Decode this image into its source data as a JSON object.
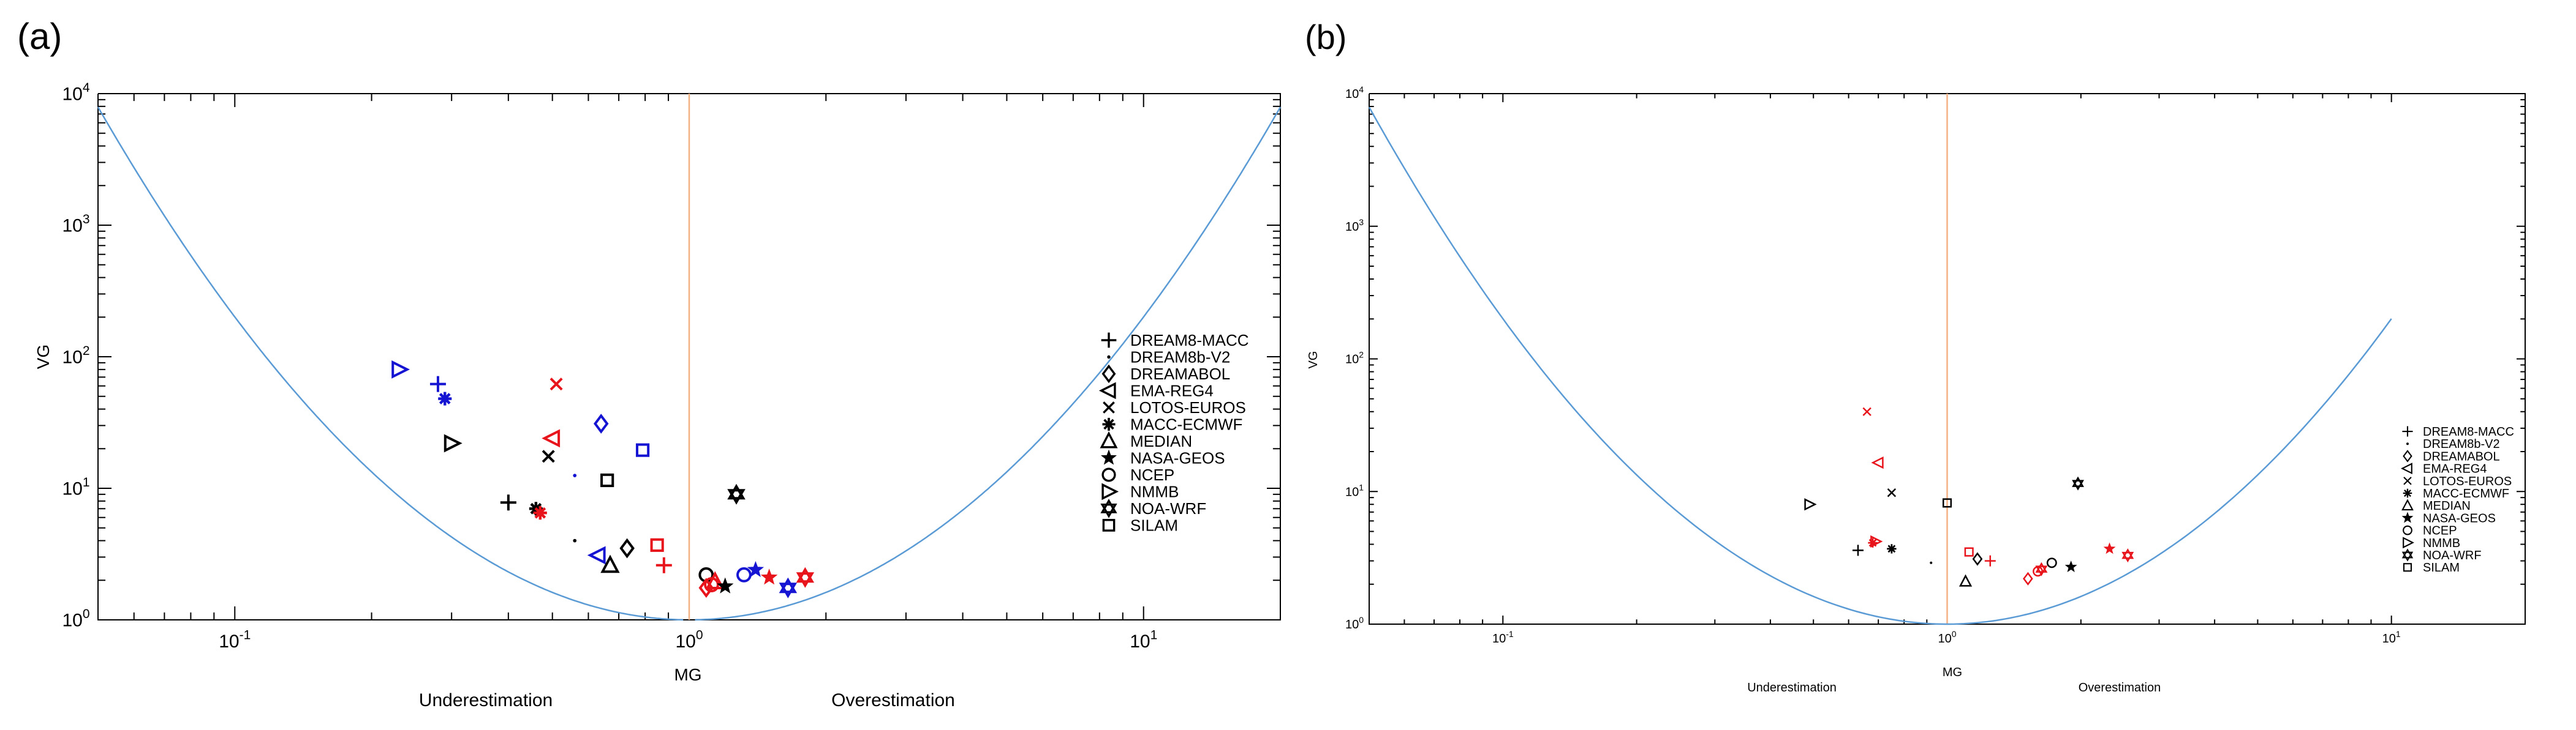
{
  "colors": {
    "black": "#000000",
    "red": "#e8141b",
    "blue": "#1414d2",
    "curve": "#5b9bd5",
    "refline": "#f4b183"
  },
  "marker_legend": [
    {
      "name": "DREAM8-MACC",
      "symbol": "plus"
    },
    {
      "name": "DREAM8b-V2",
      "symbol": "dot"
    },
    {
      "name": "DREAMABOL",
      "symbol": "diamond"
    },
    {
      "name": "EMA-REG4",
      "symbol": "tri-left"
    },
    {
      "name": "LOTOS-EUROS",
      "symbol": "cross"
    },
    {
      "name": "MACC-ECMWF",
      "symbol": "asterisk"
    },
    {
      "name": "MEDIAN",
      "symbol": "tri-up"
    },
    {
      "name": "NASA-GEOS",
      "symbol": "star"
    },
    {
      "name": "NCEP",
      "symbol": "circle"
    },
    {
      "name": "NMMB",
      "symbol": "tri-right"
    },
    {
      "name": "NOA-WRF",
      "symbol": "hexagram"
    },
    {
      "name": "SILAM",
      "symbol": "square"
    }
  ],
  "chart_data": [
    {
      "type": "scatter",
      "panel_label": "(a)",
      "xlabel": "MG",
      "ylabel": "VG",
      "xscale": "log",
      "yscale": "log",
      "xlim": [
        0.05,
        20
      ],
      "ylim": [
        1,
        10000
      ],
      "x_ticks": [
        {
          "value": 0.1,
          "base": "10",
          "exp": "-1"
        },
        {
          "value": 1,
          "base": "10",
          "exp": "0"
        },
        {
          "value": 10,
          "base": "10",
          "exp": "1"
        }
      ],
      "y_ticks": [
        {
          "value": 1,
          "base": "10",
          "exp": "0"
        },
        {
          "value": 10,
          "base": "10",
          "exp": "1"
        },
        {
          "value": 100,
          "base": "10",
          "exp": "2"
        },
        {
          "value": 1000,
          "base": "10",
          "exp": "3"
        },
        {
          "value": 10000,
          "base": "10",
          "exp": "4"
        }
      ],
      "annotations": [
        "Underestimation",
        "Overestimation"
      ],
      "legend_position": "right",
      "curve_segments": [
        {
          "x_from": 0.05,
          "x_to": 0.97
        },
        {
          "x_from": 1.03,
          "x_to": 20
        }
      ],
      "reference_line_x": 1,
      "points": [
        {
          "model": "NMMB",
          "color": "blue",
          "x": 0.23,
          "y": 80
        },
        {
          "model": "DREAM8-MACC",
          "color": "blue",
          "x": 0.28,
          "y": 62
        },
        {
          "model": "MACC-ECMWF",
          "color": "blue",
          "x": 0.29,
          "y": 48
        },
        {
          "model": "NMMB",
          "color": "black",
          "x": 0.3,
          "y": 22
        },
        {
          "model": "DREAM8-MACC",
          "color": "black",
          "x": 0.4,
          "y": 7.8
        },
        {
          "model": "MACC-ECMWF",
          "color": "black",
          "x": 0.46,
          "y": 7.0
        },
        {
          "model": "MACC-ECMWF",
          "color": "red",
          "x": 0.47,
          "y": 6.5
        },
        {
          "model": "LOTOS-EUROS",
          "color": "red",
          "x": 0.51,
          "y": 62
        },
        {
          "model": "EMA-REG4",
          "color": "red",
          "x": 0.5,
          "y": 24
        },
        {
          "model": "LOTOS-EUROS",
          "color": "black",
          "x": 0.49,
          "y": 17.5
        },
        {
          "model": "DREAM8b-V2",
          "color": "blue",
          "x": 0.56,
          "y": 12.5
        },
        {
          "model": "DREAM8b-V2",
          "color": "black",
          "x": 0.56,
          "y": 4.0
        },
        {
          "model": "DREAMABOL",
          "color": "blue",
          "x": 0.64,
          "y": 31
        },
        {
          "model": "EMA-REG4",
          "color": "blue",
          "x": 0.63,
          "y": 3.1
        },
        {
          "model": "MEDIAN",
          "color": "black",
          "x": 0.67,
          "y": 2.6
        },
        {
          "model": "DREAMABOL",
          "color": "black",
          "x": 0.73,
          "y": 3.5
        },
        {
          "model": "SILAM",
          "color": "black",
          "x": 0.66,
          "y": 11.5
        },
        {
          "model": "SILAM",
          "color": "blue",
          "x": 0.79,
          "y": 19.5
        },
        {
          "model": "SILAM",
          "color": "red",
          "x": 0.85,
          "y": 3.7
        },
        {
          "model": "DREAM8-MACC",
          "color": "red",
          "x": 0.88,
          "y": 2.6
        },
        {
          "model": "NCEP",
          "color": "black",
          "x": 1.09,
          "y": 2.2
        },
        {
          "model": "DREAMABOL",
          "color": "red",
          "x": 1.09,
          "y": 1.75
        },
        {
          "model": "NCEP",
          "color": "red",
          "x": 1.12,
          "y": 1.85
        },
        {
          "model": "MEDIAN",
          "color": "red",
          "x": 1.14,
          "y": 1.95
        },
        {
          "model": "NASA-GEOS",
          "color": "black",
          "x": 1.2,
          "y": 1.8
        },
        {
          "model": "NOA-WRF",
          "color": "black",
          "x": 1.27,
          "y": 9.0
        },
        {
          "model": "NCEP",
          "color": "blue",
          "x": 1.32,
          "y": 2.2
        },
        {
          "model": "NASA-GEOS",
          "color": "blue",
          "x": 1.4,
          "y": 2.4
        },
        {
          "model": "NASA-GEOS",
          "color": "red",
          "x": 1.5,
          "y": 2.1
        },
        {
          "model": "NOA-WRF",
          "color": "blue",
          "x": 1.65,
          "y": 1.75
        },
        {
          "model": "NOA-WRF",
          "color": "red",
          "x": 1.8,
          "y": 2.1
        }
      ]
    },
    {
      "type": "scatter",
      "panel_label": "(b)",
      "xlabel": "MG",
      "ylabel": "VG",
      "xscale": "log",
      "yscale": "log",
      "xlim": [
        0.05,
        20
      ],
      "ylim": [
        1,
        10000
      ],
      "x_ticks": [
        {
          "value": 0.1,
          "base": "10",
          "exp": "-1"
        },
        {
          "value": 1,
          "base": "10",
          "exp": "0"
        },
        {
          "value": 10,
          "base": "10",
          "exp": "1"
        }
      ],
      "y_ticks": [
        {
          "value": 1,
          "base": "10",
          "exp": "0"
        },
        {
          "value": 10,
          "base": "10",
          "exp": "1"
        },
        {
          "value": 100,
          "base": "10",
          "exp": "2"
        },
        {
          "value": 1000,
          "base": "10",
          "exp": "3"
        },
        {
          "value": 10000,
          "base": "10",
          "exp": "4"
        }
      ],
      "annotations": [
        "Underestimation",
        "Overestimation"
      ],
      "legend_position": "right",
      "curve_segments": [
        {
          "x_from": 0.05,
          "x_to": 10
        }
      ],
      "reference_line_x": 1,
      "points": [
        {
          "model": "NMMB",
          "color": "black",
          "x": 0.49,
          "y": 8.0
        },
        {
          "model": "DREAM8-MACC",
          "color": "black",
          "x": 0.63,
          "y": 3.6
        },
        {
          "model": "LOTOS-EUROS",
          "color": "red",
          "x": 0.66,
          "y": 40
        },
        {
          "model": "EMA-REG4",
          "color": "red",
          "x": 0.7,
          "y": 16.5
        },
        {
          "model": "NMMB",
          "color": "red",
          "x": 0.69,
          "y": 4.2
        },
        {
          "model": "MACC-ECMWF",
          "color": "red",
          "x": 0.68,
          "y": 4.1
        },
        {
          "model": "MACC-ECMWF",
          "color": "black",
          "x": 0.75,
          "y": 3.7
        },
        {
          "model": "LOTOS-EUROS",
          "color": "black",
          "x": 0.75,
          "y": 9.8
        },
        {
          "model": "DREAM8b-V2",
          "color": "black",
          "x": 0.92,
          "y": 2.9
        },
        {
          "model": "SILAM",
          "color": "black",
          "x": 1.0,
          "y": 8.2
        },
        {
          "model": "MEDIAN",
          "color": "black",
          "x": 1.1,
          "y": 2.1
        },
        {
          "model": "SILAM",
          "color": "red",
          "x": 1.12,
          "y": 3.5
        },
        {
          "model": "DREAMABOL",
          "color": "black",
          "x": 1.17,
          "y": 3.1
        },
        {
          "model": "DREAM8-MACC",
          "color": "red",
          "x": 1.25,
          "y": 3.0
        },
        {
          "model": "DREAMABOL",
          "color": "red",
          "x": 1.52,
          "y": 2.2
        },
        {
          "model": "NCEP",
          "color": "red",
          "x": 1.6,
          "y": 2.5
        },
        {
          "model": "NOA-WRF",
          "color": "red",
          "x": 1.63,
          "y": 2.6
        },
        {
          "model": "NCEP",
          "color": "black",
          "x": 1.72,
          "y": 2.9
        },
        {
          "model": "NASA-GEOS",
          "color": "black",
          "x": 1.9,
          "y": 2.7
        },
        {
          "model": "NOA-WRF",
          "color": "black",
          "x": 1.97,
          "y": 11.5
        },
        {
          "model": "NASA-GEOS",
          "color": "red",
          "x": 2.32,
          "y": 3.7
        },
        {
          "model": "NOA-WRF",
          "color": "red",
          "x": 2.55,
          "y": 3.3
        }
      ]
    }
  ]
}
